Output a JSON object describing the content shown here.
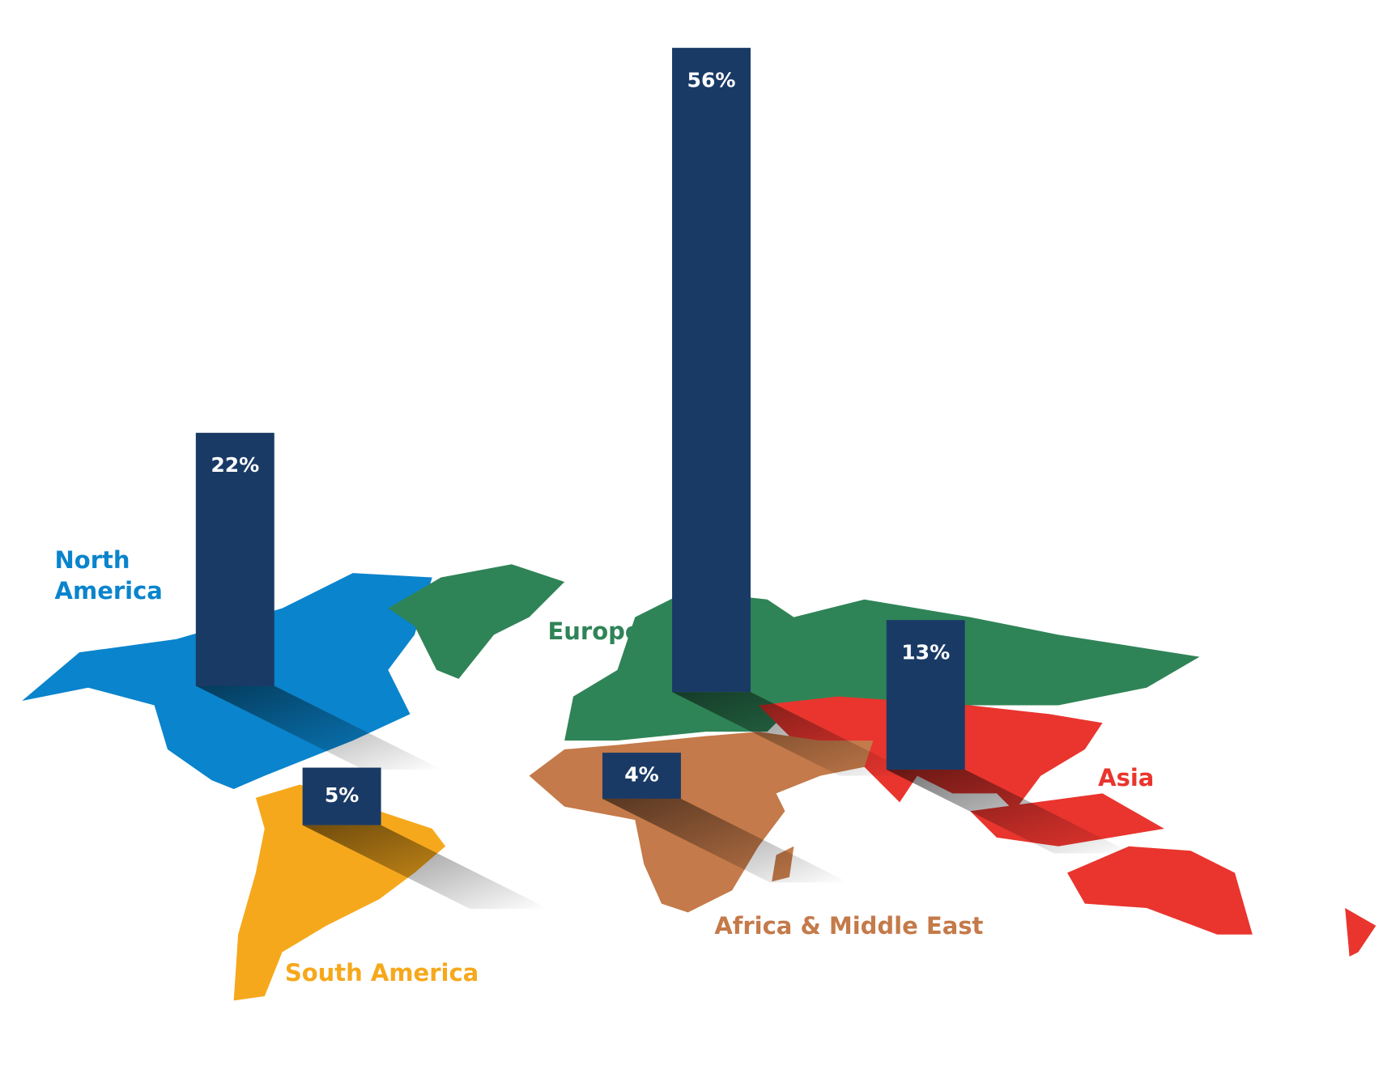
{
  "chart_data": {
    "type": "bar",
    "categories": [
      "North America",
      "South America",
      "Europe",
      "Africa & Middle East",
      "Asia"
    ],
    "values": [
      22,
      5,
      56,
      4,
      13
    ],
    "value_labels": [
      "22%",
      "5%",
      "56%",
      "4%",
      "13%"
    ],
    "color": "#1a3a66",
    "colors": [
      "#0a84cc",
      "#f6a81c",
      "#2f8457",
      "#c47a4a",
      "#e9352e"
    ]
  }
}
